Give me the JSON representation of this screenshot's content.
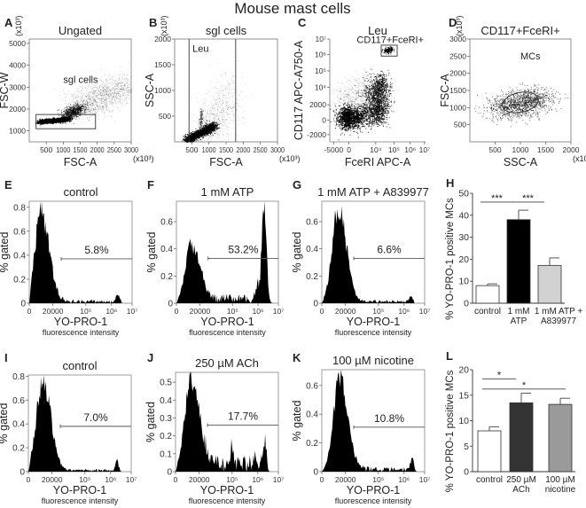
{
  "figure_title": "Mouse mast cells",
  "chart_data": [
    {
      "id": "A",
      "type": "scatter",
      "letter": "A",
      "title": "Ungated",
      "xlabel": "FSC-A",
      "ylabel": "FSC-W",
      "x_multiplier": "(x10³)",
      "y_multiplier": "(x10³)",
      "xlim": [
        0,
        3000
      ],
      "ylim": [
        500,
        5200
      ],
      "xticks": [
        {
          "v": 500,
          "t": "500"
        },
        {
          "v": 1000,
          "t": "1000"
        },
        {
          "v": 1500,
          "t": "1500"
        },
        {
          "v": 2000,
          "t": "2000"
        },
        {
          "v": 2500,
          "t": "2500"
        },
        {
          "v": 3000,
          "t": "3000"
        }
      ],
      "yticks": [
        {
          "v": 1000,
          "t": "1000"
        },
        {
          "v": 2000,
          "t": "2000"
        },
        {
          "v": 3000,
          "t": "3000"
        },
        {
          "v": 4000,
          "t": "4000"
        },
        {
          "v": 5000,
          "t": "5000"
        }
      ],
      "clusters": [
        {
          "from": [
            300,
            1420
          ],
          "to": [
            1150,
            1560
          ],
          "spread": [
            60,
            50
          ],
          "n": 1400,
          "alpha": 0.9
        },
        {
          "from": [
            1100,
            1700
          ],
          "to": [
            1500,
            2100
          ],
          "spread": [
            120,
            120
          ],
          "n": 700,
          "alpha": 0.55
        },
        {
          "from": [
            1500,
            2100
          ],
          "to": [
            2900,
            3100
          ],
          "spread": [
            300,
            350
          ],
          "n": 1200,
          "alpha": 0.18
        }
      ],
      "gate": {
        "shape": "rect",
        "x": [
          200,
          1950
        ],
        "y": [
          1100,
          1750
        ],
        "label": "sgl cells",
        "label_at": [
          1000,
          3200
        ]
      }
    },
    {
      "id": "B",
      "type": "scatter",
      "letter": "B",
      "title": "sgl cells",
      "xlabel": "FSC-A",
      "ylabel": "SSC-A",
      "x_multiplier": "(x10³)",
      "y_multiplier": "(x10³)",
      "xlim": [
        0,
        3000
      ],
      "ylim": [
        0,
        2000
      ],
      "xticks": [
        {
          "v": 500,
          "t": "500"
        },
        {
          "v": 1000,
          "t": "1000"
        },
        {
          "v": 1500,
          "t": "1500"
        },
        {
          "v": 2000,
          "t": "2000"
        },
        {
          "v": 2500,
          "t": "2500"
        },
        {
          "v": 3000,
          "t": "3000"
        }
      ],
      "yticks": [
        {
          "v": 500,
          "t": "500"
        },
        {
          "v": 1000,
          "t": "1000"
        },
        {
          "v": 1500,
          "t": "1500"
        },
        {
          "v": 2000,
          "t": "2000"
        }
      ],
      "clusters": [
        {
          "from": [
            350,
            40
          ],
          "to": [
            1150,
            320
          ],
          "spread": [
            70,
            40
          ],
          "n": 1500,
          "alpha": 0.85
        },
        {
          "from": [
            750,
            300
          ],
          "to": [
            780,
            600
          ],
          "spread": [
            30,
            60
          ],
          "n": 150,
          "alpha": 0.3
        },
        {
          "from": [
            900,
            200
          ],
          "to": [
            1600,
            900
          ],
          "spread": [
            250,
            250
          ],
          "n": 700,
          "alpha": 0.15
        }
      ],
      "gate": {
        "shape": "vlines",
        "x": [
          420,
          1780
        ],
        "label": "Leu",
        "label_at": [
          520,
          1750
        ]
      }
    },
    {
      "id": "C",
      "type": "scatter",
      "letter": "C",
      "title": "Leu",
      "xlabel": "FceRI APC-A",
      "ylabel": "CD117 APC-A750-A",
      "coordinate_units": "tick-index",
      "xticks": [
        {
          "v": 0,
          "t": "-5000"
        },
        {
          "v": 1,
          "t": "0"
        },
        {
          "v": 2,
          "t": "10⁴"
        },
        {
          "v": 3,
          "t": "10⁵"
        },
        {
          "v": 4,
          "t": "10⁶"
        },
        {
          "v": 5,
          "t": "10⁷"
        }
      ],
      "yticks": [
        {
          "v": 0,
          "t": "-2000"
        },
        {
          "v": 1,
          "t": "0"
        },
        {
          "v": 2,
          "t": "2000"
        },
        {
          "v": 3,
          "t": "10⁴"
        },
        {
          "v": 4,
          "t": "10⁵"
        },
        {
          "v": 5,
          "t": "10⁶"
        },
        {
          "v": 6,
          "t": "10⁷"
        }
      ],
      "clusters": [
        {
          "from": [
            0.9,
            1.1
          ],
          "to": [
            1.1,
            1.3
          ],
          "spread": [
            0.35,
            0.35
          ],
          "n": 1500,
          "alpha": 0.85
        },
        {
          "from": [
            2.0,
            1.1
          ],
          "to": [
            2.2,
            3.4
          ],
          "spread": [
            0.3,
            0.35
          ],
          "n": 1600,
          "alpha": 0.75
        },
        {
          "from": [
            1.0,
            2.0
          ],
          "to": [
            2.0,
            3.0
          ],
          "spread": [
            0.5,
            0.5
          ],
          "n": 600,
          "alpha": 0.2
        },
        {
          "from": [
            2.6,
            5.2
          ],
          "to": [
            2.8,
            5.4
          ],
          "spread": [
            0.12,
            0.08
          ],
          "n": 150,
          "alpha": 0.8
        }
      ],
      "gate": {
        "shape": "rect",
        "x": [
          2.3,
          3.2
        ],
        "y": [
          4.9,
          5.6
        ],
        "label": "CD117+FceRI+",
        "label_at": [
          2.3,
          5.85
        ]
      }
    },
    {
      "id": "D",
      "type": "scatter",
      "letter": "D",
      "title": "CD117+FceRI+",
      "xlabel": "SSC-A",
      "ylabel": "FSC-A",
      "x_multiplier": "(x10³)",
      "y_multiplier": "(x10³)",
      "xlim": [
        0,
        2000
      ],
      "ylim": [
        0,
        3000
      ],
      "xticks": [
        {
          "v": 500,
          "t": "500"
        },
        {
          "v": 1000,
          "t": "1000"
        },
        {
          "v": 1500,
          "t": "1500"
        },
        {
          "v": 2000,
          "t": "2000"
        }
      ],
      "yticks": [
        {
          "v": 500,
          "t": "500"
        },
        {
          "v": 1000,
          "t": "1000"
        },
        {
          "v": 1500,
          "t": "1500"
        },
        {
          "v": 2000,
          "t": "2000"
        },
        {
          "v": 2500,
          "t": "2500"
        },
        {
          "v": 3000,
          "t": "3000"
        }
      ],
      "clusters": [
        {
          "from": [
            600,
            950
          ],
          "to": [
            1400,
            1300
          ],
          "spread": [
            220,
            180
          ],
          "n": 1300,
          "alpha": 0.55
        }
      ],
      "gate": {
        "shape": "ellipse",
        "center": [
          1000,
          1150
        ],
        "radii": [
          720,
          290
        ],
        "angle_deg": 12,
        "label": "MCs",
        "label_at": [
          1000,
          2400
        ]
      }
    },
    {
      "id": "E",
      "type": "area",
      "letter": "E",
      "title": "control",
      "xlabel": "YO-PRO-1",
      "xsub": "fluorescence intensity",
      "ylabel": "% gated",
      "ylim": [
        0,
        0.85
      ],
      "yticks": [
        0,
        0.2,
        0.4,
        0.6,
        0.8
      ],
      "ytick_labels": [
        "0",
        "0.2",
        "0.4",
        "0.6",
        "0.8"
      ],
      "peaks": [
        {
          "at": 10000,
          "height": 0.78,
          "kind": "main"
        },
        {
          "at": 2000000,
          "height": 0.06,
          "kind": "minor"
        }
      ],
      "tail_level": 0.02,
      "gate": {
        "from": 30000,
        "to": 10000000,
        "y": 0.37,
        "label": "5.8%"
      }
    },
    {
      "id": "F",
      "type": "area",
      "letter": "F",
      "title": "1 mM ATP",
      "xlabel": "YO-PRO-1",
      "xsub": "fluorescence intensity",
      "ylabel": "% gated",
      "ylim": [
        0,
        0.75
      ],
      "yticks": [
        0,
        0.2,
        0.4,
        0.6
      ],
      "ytick_labels": [
        "0",
        "0.2",
        "0.4",
        "0.6"
      ],
      "peaks": [
        {
          "at": 13000,
          "height": 0.44,
          "kind": "main"
        },
        {
          "at": 2000000,
          "height": 0.72,
          "kind": "sharp"
        },
        {
          "at": 1000000,
          "height": 0.1,
          "kind": "minor"
        }
      ],
      "tail_level": 0.05,
      "gate": {
        "from": 30000,
        "to": 10000000,
        "y": 0.33,
        "label": "53.2%"
      }
    },
    {
      "id": "G",
      "type": "area",
      "letter": "G",
      "title": "1 mM ATP + A839977",
      "xlabel": "YO-PRO-1",
      "xsub": "fluorescence intensity",
      "ylabel": "% gated",
      "ylim": [
        0,
        0.75
      ],
      "yticks": [
        0,
        0.2,
        0.4,
        0.6
      ],
      "ytick_labels": [
        "0",
        "0.2",
        "0.4",
        "0.6"
      ],
      "peaks": [
        {
          "at": 14000,
          "height": 0.71,
          "kind": "main"
        },
        {
          "at": 2000000,
          "height": 0.04,
          "kind": "minor"
        }
      ],
      "tail_level": 0.015,
      "gate": {
        "from": 30000,
        "to": 10000000,
        "y": 0.33,
        "label": "6.6%"
      }
    },
    {
      "id": "I",
      "type": "area",
      "letter": "I",
      "title": "control",
      "xlabel": "YO-PRO-1",
      "xsub": "fluorescence intensity",
      "ylabel": "% gated",
      "ylim": [
        0,
        0.81
      ],
      "yticks": [
        0,
        0.2,
        0.4,
        0.6,
        0.8
      ],
      "ytick_labels": [
        "0",
        "0.2",
        "0.4",
        "0.6",
        "0.8"
      ],
      "peaks": [
        {
          "at": 12000,
          "height": 0.8,
          "kind": "main"
        },
        {
          "at": 2000000,
          "height": 0.08,
          "kind": "minor"
        }
      ],
      "tail_level": 0.015,
      "gate": {
        "from": 30000,
        "to": 10000000,
        "y": 0.38,
        "label": "7.0%"
      }
    },
    {
      "id": "J",
      "type": "area",
      "letter": "J",
      "title": "250 µM ACh",
      "xlabel": "YO-PRO-1",
      "xsub": "fluorescence intensity",
      "ylabel": "% gated",
      "ylim": [
        0,
        0.555
      ],
      "yticks": [
        0,
        0.1,
        0.2,
        0.3,
        0.4,
        0.5
      ],
      "ytick_labels": [
        "0",
        "0.1",
        "0.2",
        "0.3",
        "0.4",
        "0.5"
      ],
      "peaks": [
        {
          "at": 13000,
          "height": 0.54,
          "kind": "main"
        },
        {
          "at": 100000,
          "height": 0.1,
          "kind": "minor"
        },
        {
          "at": 800000,
          "height": 0.05,
          "kind": "minor"
        },
        {
          "at": 2200000,
          "height": 0.15,
          "kind": "minor"
        }
      ],
      "tail_level": 0.06,
      "gate": {
        "from": 30000,
        "to": 10000000,
        "y": 0.26,
        "label": "17.7%"
      }
    },
    {
      "id": "K",
      "type": "area",
      "letter": "K",
      "title": "100 µM nicotine",
      "xlabel": "YO-PRO-1",
      "xsub": "fluorescence intensity",
      "ylabel": "% gated",
      "ylim": [
        0,
        0.71
      ],
      "yticks": [
        0,
        0.2,
        0.4,
        0.6
      ],
      "ytick_labels": [
        "0",
        "0.2",
        "0.4",
        "0.6"
      ],
      "peaks": [
        {
          "at": 15000,
          "height": 0.67,
          "kind": "main"
        },
        {
          "at": 2500000,
          "height": 0.09,
          "kind": "minor"
        }
      ],
      "tail_level": 0.025,
      "gate": {
        "from": 30000,
        "to": 10000000,
        "y": 0.31,
        "label": "10.8%"
      }
    },
    {
      "id": "H",
      "type": "bar",
      "letter": "H",
      "ylabel": "% YO-PRO-1 positive MCs",
      "ylim": [
        0,
        50
      ],
      "yticks": [
        0,
        10,
        20,
        30,
        40,
        50
      ],
      "ytick_labels": [
        "0",
        "10",
        "20",
        "30",
        "40",
        "50"
      ],
      "categories": [
        [
          "control"
        ],
        [
          "1 mM",
          "ATP"
        ],
        [
          "1 mM ATP +",
          "A839977"
        ]
      ],
      "values": [
        8,
        38,
        17.2
      ],
      "errors": [
        0.8,
        4.3,
        3.4
      ],
      "colors": [
        "#ffffff",
        "#000000",
        "#d2d2d2"
      ],
      "significance": [
        {
          "from": 0,
          "to": 1,
          "y": 46,
          "label": "***"
        },
        {
          "from": 1,
          "to": 2,
          "y": 46,
          "label": "***"
        }
      ]
    },
    {
      "id": "L",
      "type": "bar",
      "letter": "L",
      "ylabel": "% YO-PRO-1 positive MCs",
      "ylim": [
        0,
        20
      ],
      "yticks": [
        0,
        5,
        10,
        15,
        20
      ],
      "ytick_labels": [
        "0",
        "5",
        "10",
        "15",
        "20"
      ],
      "categories": [
        [
          "control"
        ],
        [
          "250 µM",
          "ACh"
        ],
        [
          "100 µM",
          "nicotine"
        ]
      ],
      "values": [
        8,
        13.5,
        13.2
      ],
      "errors": [
        0.8,
        1.9,
        1.2
      ],
      "colors": [
        "#ffffff",
        "#333333",
        "#9a9a9a"
      ],
      "significance": [
        {
          "from": 0,
          "to": 1,
          "y": 18.2,
          "label": "*"
        },
        {
          "from": 0,
          "to": 2,
          "y": 16.2,
          "label": "*"
        }
      ]
    }
  ]
}
